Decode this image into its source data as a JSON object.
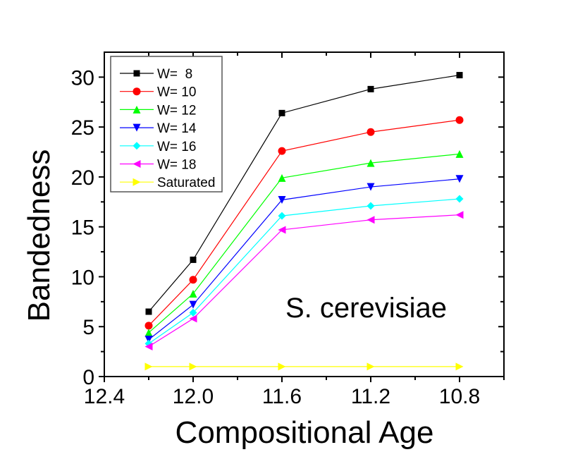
{
  "chart_data": {
    "type": "line",
    "xlabel": "Compositional Age",
    "ylabel": "Bandedness",
    "annotation": "S. cerevisiae",
    "xlim": [
      12.4,
      10.6
    ],
    "x_reversed": true,
    "ylim": [
      0,
      32.5
    ],
    "xticks": [
      "12.4",
      "12.0",
      "11.6",
      "11.2",
      "10.8"
    ],
    "yticks": [
      "0",
      "5",
      "10",
      "15",
      "20",
      "25",
      "30"
    ],
    "grid": false,
    "legend_position": "top-left",
    "x": [
      12.2,
      12.0,
      11.6,
      11.2,
      10.8
    ],
    "series": [
      {
        "name": "W=  8",
        "color": "#000000",
        "marker": "square",
        "values": [
          6.5,
          11.7,
          26.4,
          28.8,
          30.2
        ]
      },
      {
        "name": "W= 10",
        "color": "#ff0000",
        "marker": "circle",
        "values": [
          5.1,
          9.7,
          22.6,
          24.5,
          25.7
        ]
      },
      {
        "name": "W= 12",
        "color": "#00ff00",
        "marker": "triangle-up",
        "values": [
          4.4,
          8.3,
          19.9,
          21.4,
          22.3
        ]
      },
      {
        "name": "W= 14",
        "color": "#0000ff",
        "marker": "triangle-down",
        "values": [
          3.7,
          7.2,
          17.7,
          19.0,
          19.8
        ]
      },
      {
        "name": "W= 16",
        "color": "#00ffff",
        "marker": "diamond",
        "values": [
          3.3,
          6.4,
          16.1,
          17.1,
          17.8
        ]
      },
      {
        "name": "W= 18",
        "color": "#ff00ff",
        "marker": "triangle-left",
        "values": [
          3.0,
          5.8,
          14.7,
          15.7,
          16.2
        ]
      },
      {
        "name": "Saturated",
        "color": "#ffff00",
        "marker": "triangle-right",
        "values": [
          1.0,
          1.0,
          1.0,
          1.0,
          1.0
        ]
      }
    ]
  }
}
